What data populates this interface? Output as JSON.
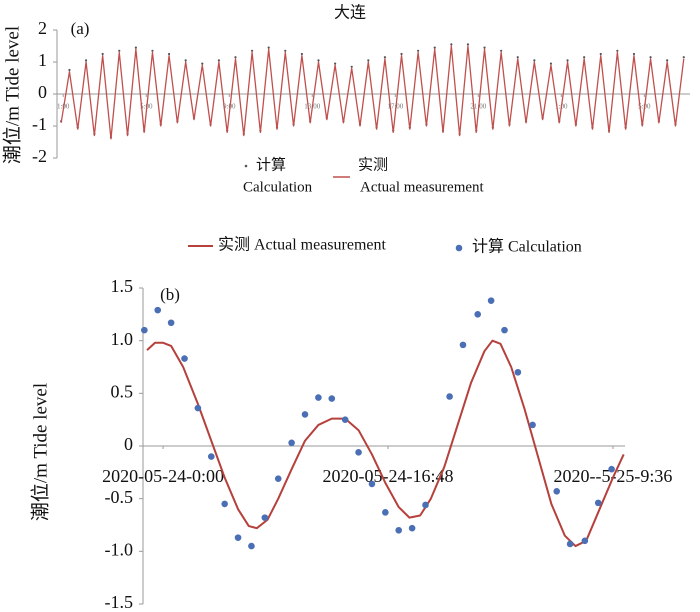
{
  "chart_data": [
    {
      "type": "line",
      "title": "大连",
      "panel_label": "(a)",
      "y_label": "潮位/m Tide level",
      "xlim": [
        0,
        30.5
      ],
      "ylim": [
        -2,
        2
      ],
      "yticks": [
        -2,
        -1,
        0,
        1,
        2
      ],
      "xticks": [
        {
          "value": 0.3,
          "label": "1:00"
        },
        {
          "value": 4.3,
          "label": "5:00"
        },
        {
          "value": 8.3,
          "label": "9:00"
        },
        {
          "value": 12.3,
          "label": "13:00"
        },
        {
          "value": 16.3,
          "label": "17:00"
        },
        {
          "value": 20.3,
          "label": "21:00"
        },
        {
          "value": 24.3,
          "label": "1:00"
        },
        {
          "value": 28.3,
          "label": "5:00"
        }
      ],
      "series": [
        {
          "name": [
            "计算",
            "Calculation"
          ],
          "mode": "markers",
          "color": "#555555",
          "x": [
            0.2,
            0.6,
            1.0,
            1.4,
            1.8,
            2.2,
            2.6,
            3.0,
            3.4,
            3.8,
            4.2,
            4.6,
            5.0,
            5.4,
            5.8,
            6.2,
            6.6,
            7.0,
            7.4,
            7.8,
            8.2,
            8.6,
            9.0,
            9.4,
            9.8,
            10.2,
            10.6,
            11.0,
            11.4,
            11.8,
            12.2,
            12.6,
            13.0,
            13.4,
            13.8,
            14.2,
            14.6,
            15.0,
            15.4,
            15.8,
            16.2,
            16.6,
            17.0,
            17.4,
            17.8,
            18.2,
            18.6,
            19.0,
            19.4,
            19.8,
            20.2,
            20.6,
            21.0,
            21.4,
            21.8,
            22.2,
            22.6,
            23.0,
            23.4,
            23.8,
            24.2,
            24.6,
            25.0,
            25.4,
            25.8,
            26.2,
            26.6,
            27.0,
            27.4,
            27.8,
            28.2,
            28.6,
            29.0,
            29.4,
            29.8,
            30.2
          ],
          "values": [
            -0.85,
            0.75,
            -1.05,
            1.05,
            -1.25,
            1.25,
            -1.35,
            1.35,
            -1.25,
            1.45,
            -1.15,
            1.35,
            -0.95,
            1.25,
            -0.85,
            1.05,
            -0.75,
            0.95,
            -0.95,
            1.05,
            -1.15,
            1.15,
            -1.25,
            1.35,
            -1.15,
            1.45,
            -1.05,
            1.35,
            -0.95,
            1.25,
            -0.85,
            1.05,
            -0.75,
            0.95,
            -0.85,
            0.85,
            -0.95,
            1.05,
            -1.05,
            1.15,
            -1.15,
            1.25,
            -1.05,
            1.35,
            -0.95,
            1.45,
            -1.15,
            1.55,
            -1.25,
            1.55,
            -1.15,
            1.45,
            -1.05,
            1.35,
            -0.95,
            1.15,
            -0.85,
            1.05,
            -0.75,
            0.95,
            -0.85,
            1.05,
            -0.95,
            1.15,
            -1.05,
            1.25,
            -1.15,
            1.35,
            -1.05,
            1.25,
            -0.95,
            1.15,
            -0.85,
            1.05,
            -0.95,
            1.15
          ]
        },
        {
          "name": [
            "实测",
            "Actual measurement"
          ],
          "mode": "line",
          "color": "#c0504d",
          "x": [
            0.2,
            0.6,
            1.0,
            1.4,
            1.8,
            2.2,
            2.6,
            3.0,
            3.4,
            3.8,
            4.2,
            4.6,
            5.0,
            5.4,
            5.8,
            6.2,
            6.6,
            7.0,
            7.4,
            7.8,
            8.2,
            8.6,
            9.0,
            9.4,
            9.8,
            10.2,
            10.6,
            11.0,
            11.4,
            11.8,
            12.2,
            12.6,
            13.0,
            13.4,
            13.8,
            14.2,
            14.6,
            15.0,
            15.4,
            15.8,
            16.2,
            16.6,
            17.0,
            17.4,
            17.8,
            18.2,
            18.6,
            19.0,
            19.4,
            19.8,
            20.2,
            20.6,
            21.0,
            21.4,
            21.8,
            22.2,
            22.6,
            23.0,
            23.4,
            23.8,
            24.2,
            24.6,
            25.0,
            25.4,
            25.8,
            26.2,
            26.6,
            27.0,
            27.4,
            27.8,
            28.2,
            28.6,
            29.0,
            29.4,
            29.8,
            30.2
          ],
          "values": [
            -0.9,
            0.7,
            -1.1,
            1.0,
            -1.3,
            1.2,
            -1.4,
            1.3,
            -1.3,
            1.4,
            -1.2,
            1.3,
            -1.0,
            1.2,
            -0.9,
            1.0,
            -0.8,
            0.9,
            -1.0,
            1.0,
            -1.2,
            1.1,
            -1.3,
            1.3,
            -1.2,
            1.4,
            -1.1,
            1.3,
            -1.0,
            1.2,
            -0.9,
            1.0,
            -0.8,
            0.9,
            -0.9,
            0.8,
            -1.0,
            1.0,
            -1.1,
            1.1,
            -1.2,
            1.2,
            -1.1,
            1.3,
            -1.0,
            1.4,
            -1.2,
            1.5,
            -1.3,
            1.5,
            -1.2,
            1.4,
            -1.1,
            1.3,
            -1.0,
            1.1,
            -0.9,
            1.0,
            -0.8,
            0.9,
            -0.9,
            1.0,
            -1.0,
            1.1,
            -1.1,
            1.2,
            -1.2,
            1.3,
            -1.1,
            1.2,
            -1.0,
            1.1,
            -0.9,
            1.0,
            -1.0,
            1.1
          ]
        }
      ]
    },
    {
      "type": "line",
      "panel_label": "(b)",
      "y_label": "潮位/m Tide level",
      "xlim": [
        -1.5,
        34.5
      ],
      "ylim": [
        -1.5,
        1.5
      ],
      "yticks": [
        -1.5,
        {
          "value": -1.0,
          "label": "-1.0"
        },
        -0.5,
        0,
        0.5,
        {
          "value": 1.0,
          "label": "1.0"
        },
        1.5
      ],
      "xticks": [
        {
          "value": 0,
          "label": "2020-05-24-0:00"
        },
        {
          "value": 16.8,
          "label": "2020-05-24-16:48"
        },
        {
          "value": 33.6,
          "label": "2020--5-25-9:36"
        }
      ],
      "series": [
        {
          "name": [
            "实测 Actual measurement"
          ],
          "mode": "line",
          "color": "#b5403c",
          "x": [
            -1.2,
            -0.6,
            0,
            0.6,
            1.5,
            2.6,
            3.6,
            4.6,
            5.6,
            6.4,
            7.0,
            7.8,
            8.6,
            9.6,
            10.6,
            11.6,
            12.6,
            13.6,
            14.6,
            15.6,
            16.6,
            17.6,
            18.4,
            19.2,
            20.0,
            21.0,
            22.0,
            23.0,
            24.0,
            24.6,
            25.2,
            26.0,
            27.0,
            28.0,
            29.0,
            30.0,
            30.8,
            31.6,
            32.6,
            33.6,
            34.4
          ],
          "values": [
            0.91,
            0.98,
            0.98,
            0.95,
            0.75,
            0.4,
            0.05,
            -0.3,
            -0.6,
            -0.76,
            -0.78,
            -0.7,
            -0.5,
            -0.22,
            0.05,
            0.2,
            0.26,
            0.26,
            0.15,
            -0.08,
            -0.35,
            -0.58,
            -0.68,
            -0.66,
            -0.5,
            -0.2,
            0.2,
            0.6,
            0.9,
            1.0,
            0.97,
            0.75,
            0.35,
            -0.1,
            -0.55,
            -0.85,
            -0.95,
            -0.9,
            -0.6,
            -0.3,
            -0.08
          ]
        },
        {
          "name": [
            "计算  Calculation"
          ],
          "mode": "markers",
          "color": "#4a6fb5",
          "x": [
            -1.4,
            -0.4,
            0.6,
            1.6,
            2.6,
            3.6,
            4.6,
            5.6,
            6.6,
            7.6,
            8.6,
            9.6,
            10.6,
            11.6,
            12.6,
            13.6,
            14.6,
            15.6,
            16.6,
            17.6,
            18.6,
            19.6,
            21.4,
            22.4,
            23.5,
            24.5,
            25.5,
            26.5,
            27.6,
            29.4,
            30.4,
            31.5,
            32.5,
            33.5
          ],
          "values": [
            1.1,
            1.29,
            1.17,
            0.83,
            0.36,
            -0.1,
            -0.55,
            -0.87,
            -0.95,
            -0.68,
            -0.31,
            0.03,
            0.3,
            0.46,
            0.45,
            0.25,
            -0.06,
            -0.36,
            -0.63,
            -0.8,
            -0.78,
            -0.56,
            0.47,
            0.96,
            1.25,
            1.38,
            1.1,
            0.7,
            0.2,
            -0.43,
            -0.93,
            -0.9,
            -0.54,
            -0.22
          ]
        }
      ]
    }
  ]
}
